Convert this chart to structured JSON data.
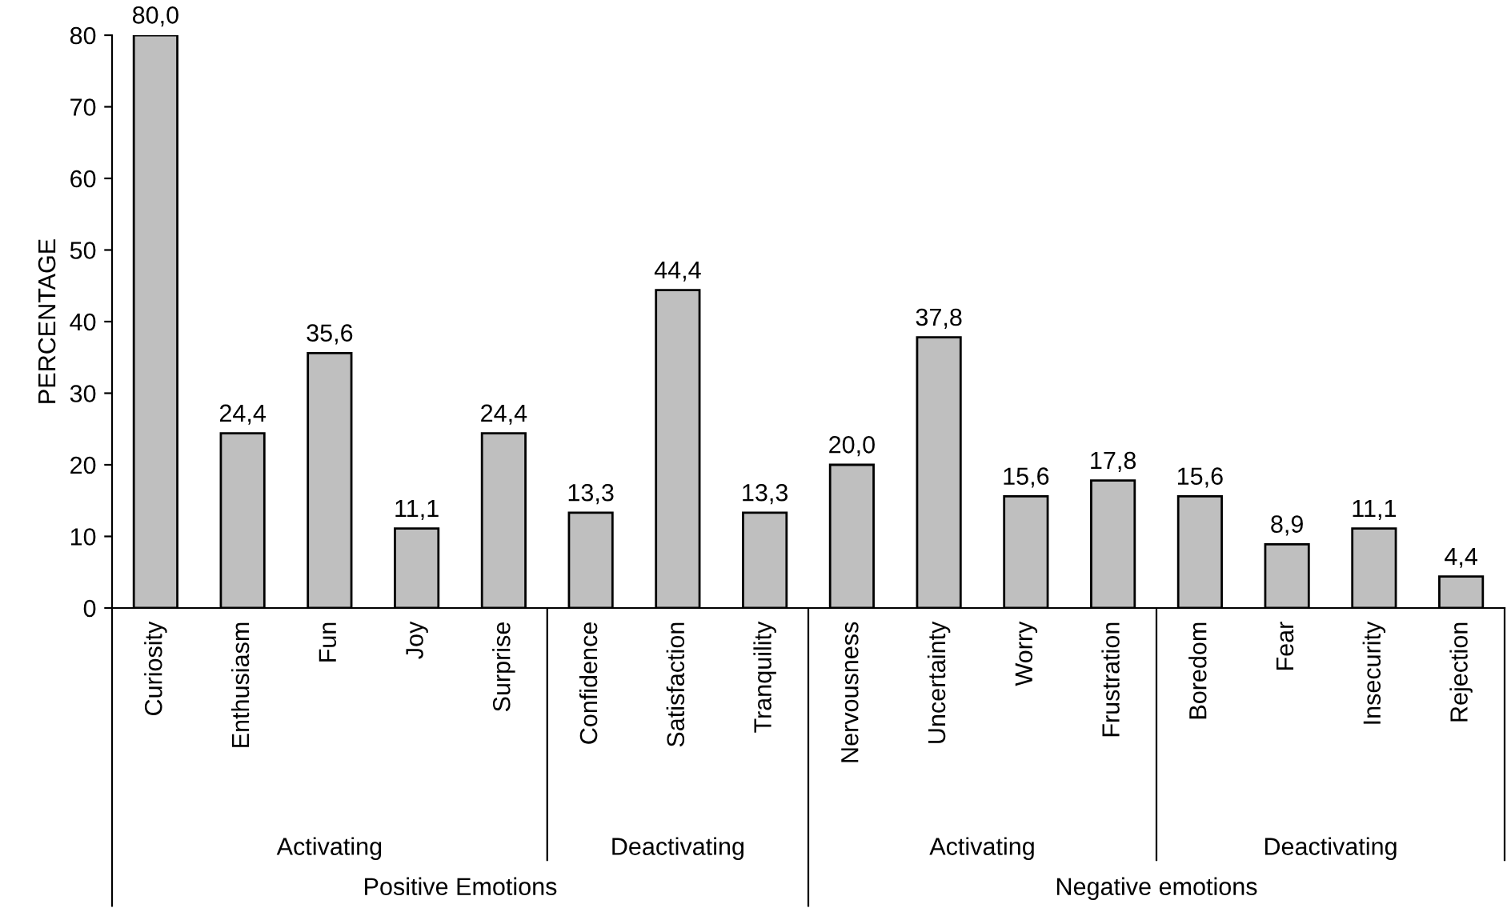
{
  "chart_data": {
    "type": "bar",
    "ylabel": "PERCENTAGE",
    "categories": [
      "Curiosity",
      "Enthusiasm",
      "Fun",
      "Joy",
      "Surprise",
      "Confidence",
      "Satisfaction",
      "Tranquility",
      "Nervousness",
      "Uncertainty",
      "Worry",
      "Frustration",
      "Boredom",
      "Fear",
      "Insecurity",
      "Rejection"
    ],
    "values": [
      80.0,
      24.4,
      35.6,
      11.1,
      24.4,
      13.3,
      44.4,
      13.3,
      20.0,
      37.8,
      15.6,
      17.8,
      15.6,
      8.9,
      11.1,
      4.4
    ],
    "value_labels": [
      "80,0",
      "24,4",
      "35,6",
      "11,1",
      "24,4",
      "13,3",
      "44,4",
      "13,3",
      "20,0",
      "37,8",
      "15,6",
      "17,8",
      "15,6",
      "8,9",
      "11,1",
      "4,4"
    ],
    "color": "#bfbfbf",
    "ylim": [
      0,
      80
    ],
    "yticks": [
      0,
      10,
      20,
      30,
      40,
      50,
      60,
      70,
      80
    ],
    "grid": false,
    "annotations": [
      "Activating",
      "Deactivating",
      "Activating",
      "Deactivating",
      "Positive Emotions",
      "Negative emotions"
    ]
  }
}
